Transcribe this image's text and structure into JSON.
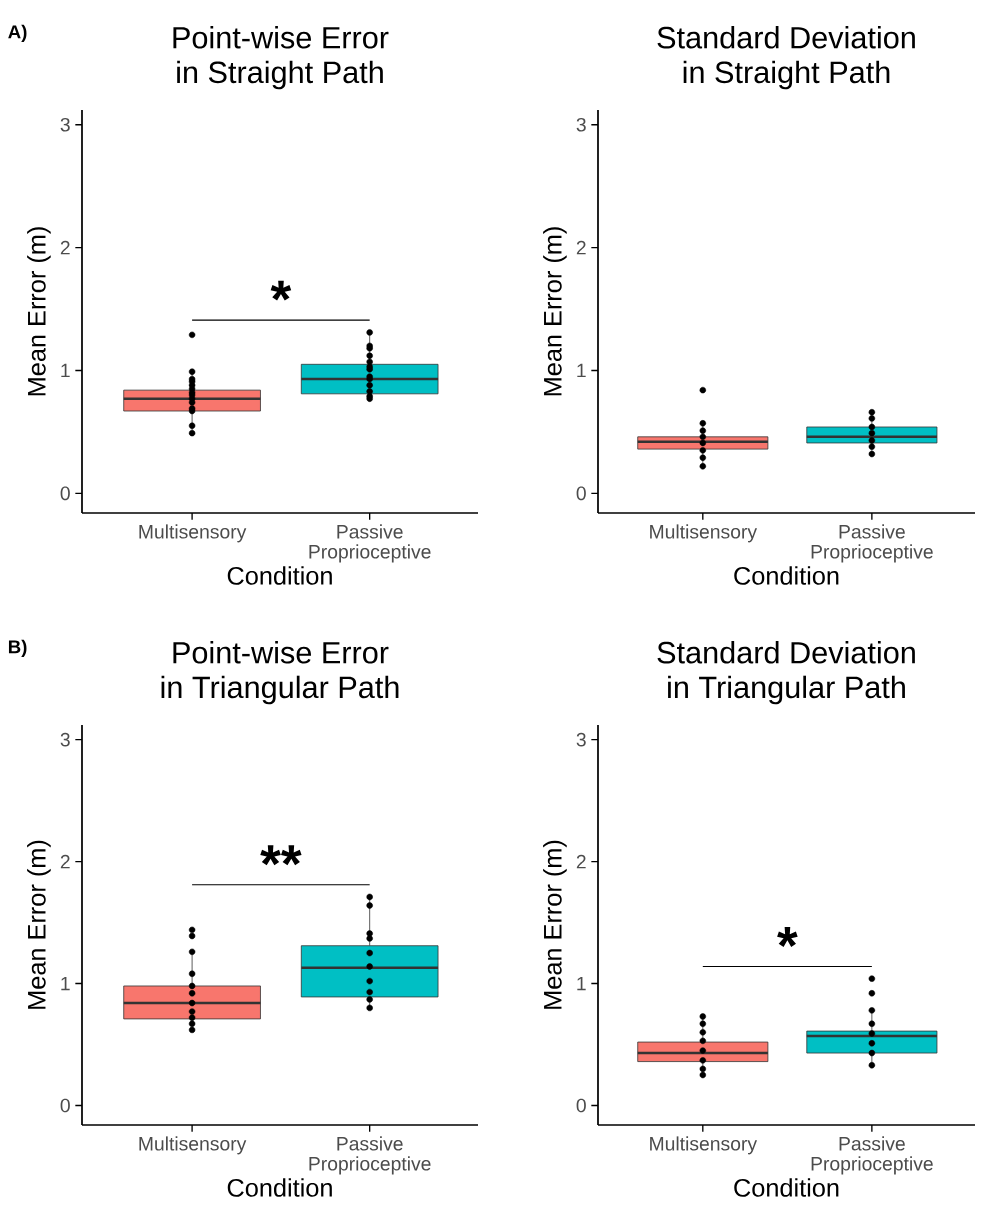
{
  "chart_data": [
    {
      "type": "box",
      "title": "Point-wise Error",
      "subtitle": "in Straight Path",
      "xlabel": "Condition",
      "ylabel": "Mean Error (m)",
      "categories": [
        "Multisensory",
        "Passive Proprioceptive"
      ],
      "colors": [
        "#f8766d",
        "#00bfc4"
      ],
      "ylim": [
        -0.16,
        3.12
      ],
      "yticks": [
        0,
        1,
        2,
        3
      ],
      "annotations": [
        "A)",
        "*"
      ],
      "boxes": [
        {
          "low": 0.49,
          "q1": 0.67,
          "median": 0.77,
          "q3": 0.84,
          "high": 0.99
        },
        {
          "low": 0.75,
          "q1": 0.81,
          "median": 0.93,
          "q3": 1.05,
          "high": 1.31
        }
      ],
      "series": [
        {
          "type": "scatter",
          "color": "#000000",
          "marker": "circle",
          "x": [
            "Multisensory",
            "Multisensory",
            "Multisensory",
            "Multisensory",
            "Multisensory",
            "Multisensory",
            "Multisensory",
            "Multisensory",
            "Multisensory",
            "Multisensory",
            "Multisensory",
            "Multisensory",
            "Multisensory",
            "Multisensory"
          ],
          "values": [
            1.29,
            0.99,
            0.93,
            0.91,
            0.88,
            0.85,
            0.82,
            0.8,
            0.77,
            0.74,
            0.69,
            0.67,
            0.55,
            0.49
          ]
        },
        {
          "type": "scatter",
          "color": "#000000",
          "marker": "circle",
          "x": [
            "Passive Proprioceptive",
            "Passive Proprioceptive",
            "Passive Proprioceptive",
            "Passive Proprioceptive",
            "Passive Proprioceptive",
            "Passive Proprioceptive",
            "Passive Proprioceptive",
            "Passive Proprioceptive",
            "Passive Proprioceptive",
            "Passive Proprioceptive",
            "Passive Proprioceptive",
            "Passive Proprioceptive",
            "Passive Proprioceptive"
          ],
          "values": [
            1.31,
            1.2,
            1.18,
            1.12,
            1.07,
            1.03,
            1.01,
            0.95,
            0.93,
            0.88,
            0.83,
            0.79,
            0.77
          ]
        }
      ]
    },
    {
      "type": "box",
      "title": "Standard Deviation",
      "subtitle": "in Straight Path",
      "xlabel": "Condition",
      "ylabel": "Mean Error (m)",
      "categories": [
        "Multisensory",
        "Passive Proprioceptive"
      ],
      "colors": [
        "#f8766d",
        "#00bfc4"
      ],
      "ylim": [
        -0.16,
        3.12
      ],
      "yticks": [
        0,
        1,
        2,
        3
      ],
      "boxes": [
        {
          "low": 0.22,
          "q1": 0.36,
          "median": 0.42,
          "q3": 0.46,
          "high": 0.57
        },
        {
          "low": 0.32,
          "q1": 0.41,
          "median": 0.46,
          "q3": 0.54,
          "high": 0.66
        }
      ],
      "series": [
        {
          "type": "scatter",
          "color": "#000000",
          "marker": "circle",
          "x": [
            "Multisensory",
            "Multisensory",
            "Multisensory",
            "Multisensory",
            "Multisensory",
            "Multisensory",
            "Multisensory",
            "Multisensory"
          ],
          "values": [
            0.84,
            0.57,
            0.51,
            0.46,
            0.41,
            0.35,
            0.29,
            0.22
          ]
        },
        {
          "type": "scatter",
          "color": "#000000",
          "marker": "circle",
          "x": [
            "Passive Proprioceptive",
            "Passive Proprioceptive",
            "Passive Proprioceptive",
            "Passive Proprioceptive",
            "Passive Proprioceptive",
            "Passive Proprioceptive",
            "Passive Proprioceptive"
          ],
          "values": [
            0.66,
            0.61,
            0.54,
            0.49,
            0.43,
            0.38,
            0.32
          ]
        }
      ]
    },
    {
      "type": "box",
      "title": "Point-wise Error",
      "subtitle": "in Triangular Path",
      "xlabel": "Condition",
      "ylabel": "Mean Error (m)",
      "categories": [
        "Multisensory",
        "Passive Proprioceptive"
      ],
      "colors": [
        "#f8766d",
        "#00bfc4"
      ],
      "ylim": [
        -0.16,
        3.12
      ],
      "yticks": [
        0,
        1,
        2,
        3
      ],
      "annotations": [
        "B)",
        "**"
      ],
      "boxes": [
        {
          "low": 0.62,
          "q1": 0.71,
          "median": 0.84,
          "q3": 0.98,
          "high": 1.26
        },
        {
          "low": 0.8,
          "q1": 0.89,
          "median": 1.13,
          "q3": 1.31,
          "high": 1.71
        }
      ],
      "series": [
        {
          "type": "scatter",
          "color": "#000000",
          "marker": "circle",
          "x": [
            "Multisensory",
            "Multisensory",
            "Multisensory",
            "Multisensory",
            "Multisensory",
            "Multisensory",
            "Multisensory",
            "Multisensory",
            "Multisensory",
            "Multisensory",
            "Multisensory"
          ],
          "values": [
            1.44,
            1.39,
            1.26,
            1.08,
            0.98,
            0.92,
            0.84,
            0.77,
            0.72,
            0.67,
            0.62
          ]
        },
        {
          "type": "scatter",
          "color": "#000000",
          "marker": "circle",
          "x": [
            "Passive Proprioceptive",
            "Passive Proprioceptive",
            "Passive Proprioceptive",
            "Passive Proprioceptive",
            "Passive Proprioceptive",
            "Passive Proprioceptive",
            "Passive Proprioceptive",
            "Passive Proprioceptive",
            "Passive Proprioceptive",
            "Passive Proprioceptive"
          ],
          "values": [
            1.71,
            1.64,
            1.41,
            1.37,
            1.25,
            1.14,
            1.02,
            0.93,
            0.87,
            0.8
          ]
        }
      ]
    },
    {
      "type": "box",
      "title": "Standard Deviation",
      "subtitle": "in Triangular Path",
      "xlabel": "Condition",
      "ylabel": "Mean Error (m)",
      "categories": [
        "Multisensory",
        "Passive Proprioceptive"
      ],
      "colors": [
        "#f8766d",
        "#00bfc4"
      ],
      "ylim": [
        -0.16,
        3.12
      ],
      "yticks": [
        0,
        1,
        2,
        3
      ],
      "annotations": [
        "*"
      ],
      "boxes": [
        {
          "low": 0.25,
          "q1": 0.36,
          "median": 0.43,
          "q3": 0.52,
          "high": 0.73
        },
        {
          "low": 0.33,
          "q1": 0.43,
          "median": 0.57,
          "q3": 0.61,
          "high": 0.78
        }
      ],
      "series": [
        {
          "type": "scatter",
          "color": "#000000",
          "marker": "circle",
          "x": [
            "Multisensory",
            "Multisensory",
            "Multisensory",
            "Multisensory",
            "Multisensory",
            "Multisensory",
            "Multisensory",
            "Multisensory"
          ],
          "values": [
            0.73,
            0.67,
            0.6,
            0.53,
            0.45,
            0.37,
            0.3,
            0.25
          ]
        },
        {
          "type": "scatter",
          "color": "#000000",
          "marker": "circle",
          "x": [
            "Passive Proprioceptive",
            "Passive Proprioceptive",
            "Passive Proprioceptive",
            "Passive Proprioceptive",
            "Passive Proprioceptive",
            "Passive Proprioceptive",
            "Passive Proprioceptive",
            "Passive Proprioceptive"
          ],
          "values": [
            1.04,
            0.92,
            0.78,
            0.67,
            0.59,
            0.51,
            0.43,
            0.33
          ]
        }
      ]
    }
  ]
}
